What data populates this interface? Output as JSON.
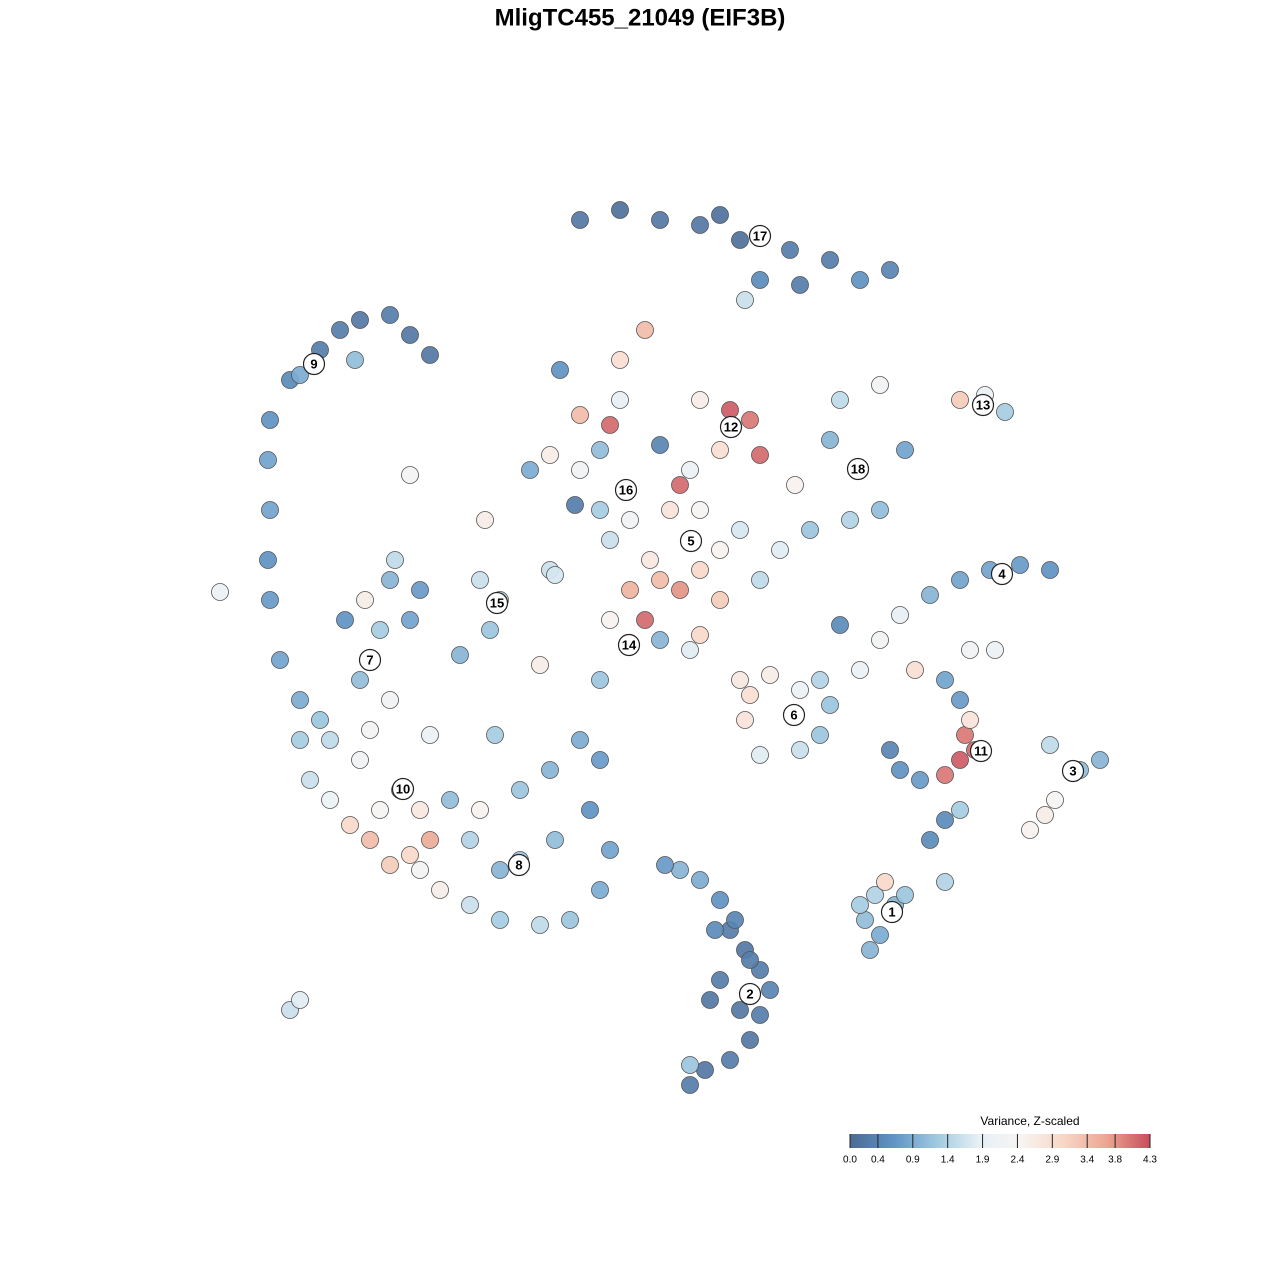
{
  "chart_data": {
    "type": "scatter",
    "title": "MligTC455_21049 (EIF3B)",
    "xlim": [
      0,
      1280
    ],
    "ylim": [
      1280,
      0
    ],
    "x": [
      690,
      705,
      730,
      750,
      760,
      770,
      760,
      745,
      730,
      715,
      720,
      700,
      680,
      665,
      740,
      720,
      710,
      690,
      750,
      735,
      870,
      880,
      865,
      895,
      905,
      875,
      885,
      860,
      930,
      945,
      960,
      920,
      900,
      945,
      960,
      975,
      965,
      970,
      960,
      945,
      915,
      890,
      1030,
      1045,
      1055,
      1080,
      1100,
      1050,
      860,
      880,
      900,
      930,
      960,
      990,
      1020,
      1050,
      840,
      970,
      995,
      760,
      800,
      820,
      745,
      750,
      770,
      800,
      830,
      820,
      740,
      690,
      660,
      645,
      680,
      700,
      720,
      650,
      610,
      630,
      700,
      740,
      760,
      780,
      720,
      700,
      630,
      670,
      540,
      600,
      630,
      610,
      660,
      690,
      730,
      750,
      760,
      720,
      700,
      730,
      690,
      625,
      600,
      580,
      550,
      530,
      575,
      600,
      660,
      680,
      610,
      580,
      620,
      620,
      645,
      560,
      810,
      850,
      880,
      860,
      830,
      840,
      880,
      905,
      795,
      960,
      985,
      1005,
      580,
      620,
      660,
      700,
      740,
      760,
      790,
      830,
      860,
      890,
      800,
      760,
      745,
      720,
      270,
      268,
      270,
      268,
      270,
      290,
      300,
      320,
      340,
      360,
      390,
      410,
      430,
      355,
      280,
      300,
      320,
      360,
      370,
      380,
      365,
      390,
      410,
      420,
      395,
      345,
      390,
      310,
      330,
      350,
      370,
      390,
      420,
      440,
      470,
      500,
      540,
      570,
      600,
      610,
      590,
      600,
      580,
      550,
      520,
      480,
      450,
      420,
      400,
      380,
      360,
      370,
      330,
      300,
      430,
      410,
      520,
      470,
      555,
      500,
      430,
      495,
      460,
      490,
      500,
      480,
      290,
      300,
      220,
      410,
      485,
      945,
      550,
      555
    ],
    "y": [
      195,
      210,
      220,
      240,
      265,
      290,
      310,
      330,
      350,
      350,
      380,
      400,
      410,
      415,
      270,
      300,
      280,
      215,
      320,
      360,
      330,
      345,
      360,
      375,
      385,
      385,
      398,
      375,
      440,
      460,
      470,
      500,
      510,
      505,
      520,
      530,
      545,
      560,
      580,
      600,
      610,
      530,
      450,
      465,
      480,
      510,
      520,
      535,
      610,
      640,
      665,
      685,
      700,
      710,
      715,
      710,
      655,
      630,
      630,
      525,
      530,
      545,
      560,
      585,
      605,
      590,
      575,
      600,
      600,
      740,
      700,
      660,
      690,
      710,
      730,
      720,
      740,
      760,
      770,
      750,
      700,
      730,
      680,
      645,
      690,
      770,
      615,
      600,
      635,
      660,
      640,
      630,
      855,
      860,
      825,
      830,
      880,
      870,
      810,
      790,
      770,
      810,
      825,
      810,
      775,
      830,
      835,
      795,
      855,
      865,
      880,
      920,
      950,
      910,
      750,
      760,
      770,
      810,
      840,
      880,
      895,
      830,
      795,
      880,
      885,
      868,
      1060,
      1070,
      1060,
      1055,
      1040,
      1045,
      1030,
      1020,
      1000,
      1010,
      995,
      1000,
      980,
      1065,
      680,
      720,
      770,
      820,
      860,
      900,
      905,
      930,
      950,
      960,
      965,
      945,
      925,
      920,
      620,
      580,
      560,
      600,
      620,
      650,
      680,
      700,
      660,
      690,
      720,
      660,
      580,
      500,
      480,
      455,
      440,
      415,
      410,
      390,
      375,
      360,
      355,
      360,
      390,
      430,
      470,
      520,
      540,
      510,
      490,
      470,
      480,
      470,
      490,
      470,
      520,
      550,
      540,
      540,
      440,
      425,
      420,
      440,
      440,
      410,
      545,
      545,
      625,
      650,
      680,
      700,
      270,
      280,
      688,
      805,
      760,
      398,
      710,
      705
    ],
    "values": [
      0.3,
      0.2,
      0.3,
      0.2,
      0.3,
      0.4,
      0.3,
      0.2,
      0.3,
      0.5,
      0.6,
      0.9,
      1.0,
      0.7,
      0.2,
      0.3,
      0.2,
      1.2,
      0.3,
      0.4,
      1.0,
      0.9,
      1.1,
      1.0,
      1.2,
      1.4,
      3.0,
      1.3,
      0.5,
      0.5,
      1.3,
      0.7,
      0.6,
      4.0,
      4.2,
      4.1,
      4.0,
      2.8,
      0.7,
      0.8,
      2.9,
      0.4,
      2.5,
      2.6,
      2.4,
      1.1,
      1.0,
      1.5,
      2.0,
      2.2,
      1.9,
      1.0,
      0.8,
      0.8,
      0.7,
      0.6,
      0.5,
      2.2,
      2.0,
      1.8,
      1.6,
      1.2,
      2.8,
      2.9,
      2.6,
      2.0,
      1.2,
      1.4,
      2.7,
      2.6,
      3.4,
      4.1,
      3.8,
      3.0,
      2.5,
      2.7,
      1.6,
      2.2,
      2.4,
      1.7,
      1.5,
      1.8,
      3.2,
      3.0,
      3.5,
      2.8,
      2.6,
      1.2,
      1.5,
      2.5,
      1.0,
      1.8,
      2.9,
      4.0,
      4.1,
      2.9,
      2.6,
      4.2,
      2.0,
      1.2,
      1.3,
      2.2,
      2.6,
      0.9,
      0.3,
      1.1,
      0.4,
      4.1,
      4.1,
      3.4,
      1.9,
      2.9,
      3.4,
      0.6,
      1.2,
      1.4,
      1.1,
      1.8,
      1.0,
      1.5,
      2.2,
      0.8,
      2.5,
      3.2,
      2.0,
      1.3,
      0.2,
      0.1,
      0.2,
      0.2,
      0.1,
      0.3,
      0.3,
      0.3,
      0.6,
      0.4,
      0.3,
      0.5,
      1.6,
      0.1,
      0.7,
      0.6,
      0.8,
      0.8,
      0.6,
      0.5,
      0.9,
      0.3,
      0.3,
      0.2,
      0.3,
      0.2,
      0.2,
      1.1,
      0.8,
      0.9,
      1.2,
      1.1,
      0.9,
      1.3,
      2.6,
      1.0,
      0.8,
      0.7,
      1.5,
      0.6,
      2.2,
      1.6,
      2.1,
      3.0,
      3.4,
      3.2,
      2.3,
      2.6,
      1.6,
      1.3,
      1.5,
      1.2,
      0.9,
      0.8,
      0.6,
      0.7,
      0.9,
      1.0,
      1.2,
      2.5,
      1.1,
      2.7,
      0.5,
      2.4,
      2.2,
      2.3,
      1.5,
      1.3,
      3.6,
      3.0,
      1.2,
      1.4,
      1.1,
      1.0,
      2.0,
      1.3,
      1.0,
      1.2,
      1.4,
      1.6,
      1.6,
      1.8,
      2.0,
      2.3,
      2.6,
      1.4,
      1.6,
      1.7
    ],
    "clusters": {
      "labels": [
        "1",
        "2",
        "3",
        "4",
        "5",
        "6",
        "7",
        "8",
        "9",
        "10",
        "11",
        "12",
        "13",
        "14",
        "15",
        "16",
        "17",
        "18"
      ],
      "x": [
        892,
        750,
        1073,
        1002,
        691,
        794,
        370,
        519,
        314,
        403,
        981,
        731,
        983,
        629,
        497,
        626,
        760,
        858
      ],
      "y": [
        368,
        286,
        509,
        706,
        739,
        565,
        620,
        415,
        916,
        491,
        529,
        853,
        875,
        635,
        677,
        790,
        1044,
        811
      ]
    },
    "colorbar": {
      "title": "Variance, Z-scaled",
      "clim": [
        0,
        4.3
      ],
      "ticks": [
        {
          "value": 0,
          "label": "0.0"
        },
        0.4,
        0.9,
        1.4,
        1.9,
        2.4,
        2.9,
        3.4,
        3.8,
        4.3
      ],
      "colors": [
        "#4b6a94",
        "#5f93c4",
        "#9ec8df",
        "#e6f0f5",
        "#f7f4f2",
        "#f8d6c4",
        "#eba591",
        "#c84d5c"
      ]
    }
  }
}
